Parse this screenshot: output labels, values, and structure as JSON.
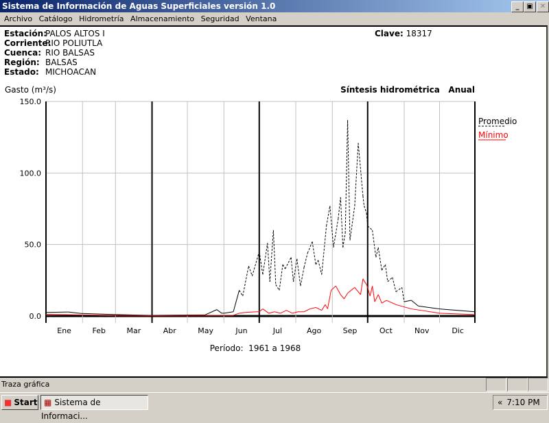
{
  "window": {
    "title": "Sistema de Información de Aguas Superficiales  versión 1.0",
    "minimize": "_",
    "restore": "▣",
    "close": "✕"
  },
  "menu": [
    "Archivo",
    "Catálogo",
    "Hidrometría",
    "Almacenamiento",
    "Seguridad",
    "Ventana"
  ],
  "station": {
    "estacion_label": "Estación:",
    "estacion": "PALOS ALTOS I",
    "corriente_label": "Corriente:",
    "corriente": "RIO POLIUTLA",
    "cuenca_label": "Cuenca:",
    "cuenca": "RIO BALSAS",
    "region_label": "Región:",
    "region": "BALSAS",
    "estado_label": "Estado:",
    "estado": "MICHOACAN",
    "clave_label": "Clave:",
    "clave": "18317"
  },
  "status": {
    "text": "Traza gráfica"
  },
  "taskbar": {
    "start": "Start",
    "task": "Sistema de Informaci...",
    "clock": "7:10 PM",
    "chevron": "«"
  },
  "chart_data": {
    "type": "line",
    "title": "Síntesis hidrométrica   Anual",
    "ylabel": "Gasto (m³/s)",
    "xlabel": "Período:  1961 a 1968",
    "ylim": [
      0,
      150
    ],
    "yticks": [
      "0.0",
      "50.0",
      "100.0",
      "150.0"
    ],
    "categories": [
      "Ene",
      "Feb",
      "Mar",
      "Abr",
      "May",
      "Jun",
      "Jul",
      "Ago",
      "Sep",
      "Oct",
      "Nov",
      "Dic"
    ],
    "x_unit": "day of year",
    "grid": true,
    "legend": "right",
    "series": [
      {
        "name": "Promedio",
        "color": "#000000",
        "style": "dashed",
        "x": [
          1,
          20,
          31,
          60,
          90,
          136,
          146,
          150,
          152,
          160,
          165,
          168,
          173,
          176,
          182,
          185,
          189,
          191,
          194,
          196,
          199,
          202,
          204,
          209,
          211,
          214,
          217,
          220,
          223,
          227,
          230,
          232,
          235,
          239,
          242,
          245,
          249,
          251,
          253,
          255,
          257,
          259,
          263,
          266,
          270,
          271,
          273,
          274,
          278,
          281,
          283,
          286,
          289,
          291,
          295,
          298,
          303,
          305,
          311,
          317,
          335,
          365
        ],
        "y": [
          2.5,
          2.8,
          1.8,
          1.0,
          0.5,
          0.8,
          4.5,
          2,
          2,
          3,
          18,
          14,
          35,
          28,
          45,
          29,
          51,
          24,
          60,
          22,
          18,
          36,
          33,
          41,
          24,
          40,
          21,
          34,
          44,
          52,
          36,
          39,
          29,
          63,
          77,
          48,
          68,
          83,
          48,
          58,
          137,
          53,
          77,
          121,
          84,
          77,
          72,
          63,
          60,
          41,
          48,
          32,
          36,
          24,
          27,
          17,
          20,
          10,
          11,
          7,
          5,
          3
        ]
      },
      {
        "name": "Mínimo",
        "color": "#ff0000",
        "style": "solid",
        "x": [
          1,
          31,
          60,
          90,
          160,
          165,
          170,
          180,
          182,
          185,
          190,
          195,
          200,
          205,
          210,
          215,
          220,
          225,
          230,
          235,
          238,
          240,
          243,
          247,
          251,
          254,
          257,
          260,
          263,
          266,
          268,
          270,
          273,
          274,
          276,
          278,
          280,
          283,
          286,
          290,
          298,
          311,
          335,
          365
        ],
        "y": [
          1.2,
          0.8,
          0.4,
          0.3,
          0.5,
          2,
          2.5,
          3,
          3,
          5,
          2,
          3,
          2,
          4,
          2,
          3,
          3,
          5,
          6,
          4,
          8,
          5,
          18,
          21,
          15,
          12,
          16,
          18,
          20,
          17,
          15,
          26,
          22,
          20,
          14,
          21,
          10,
          15,
          9,
          11,
          8,
          5,
          2,
          1
        ]
      }
    ]
  }
}
